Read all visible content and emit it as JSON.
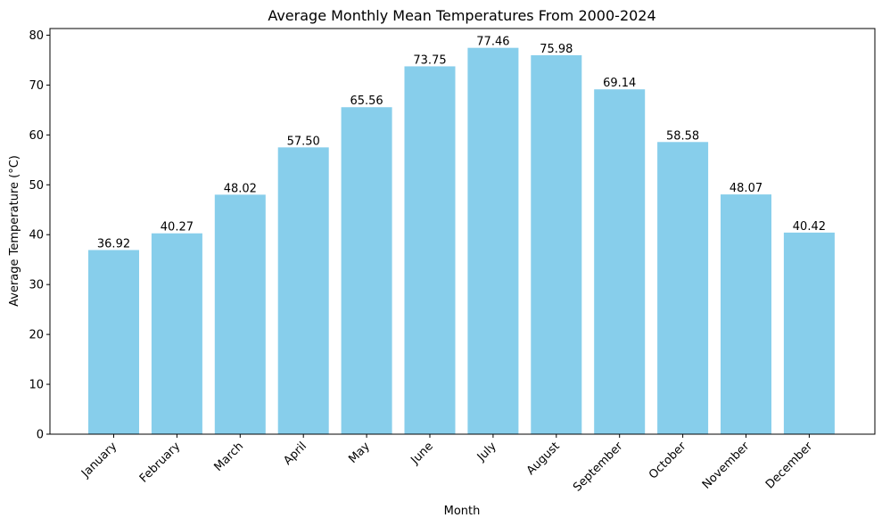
{
  "chart_data": {
    "type": "bar",
    "title": "Average Monthly Mean Temperatures From 2000-2024",
    "xlabel": "Month",
    "ylabel": "Average Temperature (°C)",
    "categories": [
      "January",
      "February",
      "March",
      "April",
      "May",
      "June",
      "July",
      "August",
      "September",
      "October",
      "November",
      "December"
    ],
    "values": [
      36.92,
      40.27,
      48.02,
      57.5,
      65.56,
      73.75,
      77.46,
      75.98,
      69.14,
      58.58,
      48.07,
      40.42
    ],
    "value_labels": [
      "36.92",
      "40.27",
      "48.02",
      "57.50",
      "65.56",
      "73.75",
      "77.46",
      "75.98",
      "69.14",
      "58.58",
      "48.07",
      "40.42"
    ],
    "yticks": [
      "0",
      "10",
      "20",
      "30",
      "40",
      "50",
      "60",
      "70",
      "80"
    ],
    "ylim": [
      0,
      81.333
    ],
    "grid": false,
    "bar_color": "#87ceeb",
    "xtick_rotation": 45
  }
}
